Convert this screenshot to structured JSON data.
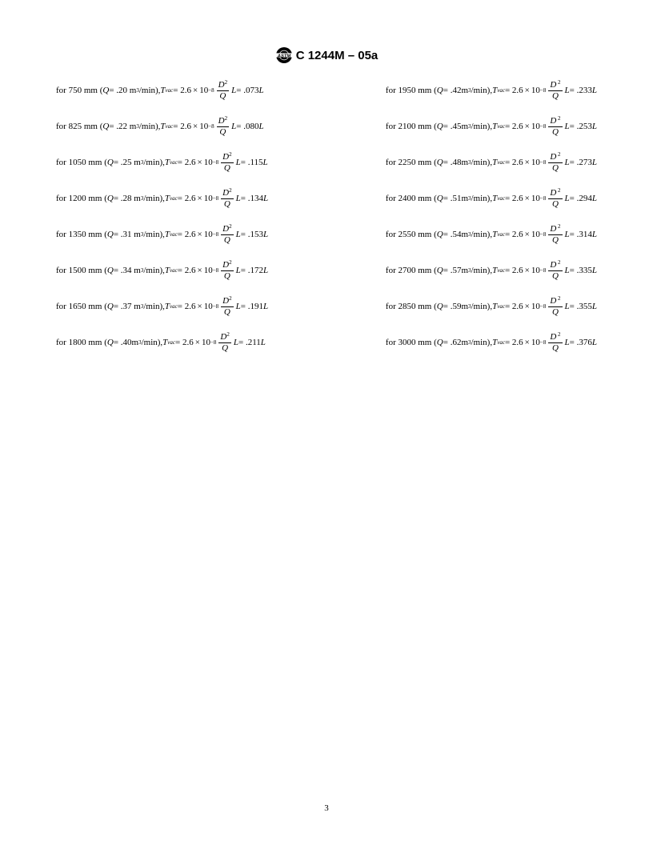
{
  "header": {
    "designation": "C 1244M – 05a"
  },
  "footer": {
    "page_number": "3"
  },
  "formula": {
    "constant": "2.6",
    "exponent_base": "10",
    "exponent_left": "−8",
    "exponent_right": " −8",
    "frac_num_var": "D",
    "frac_num_exp_left": "2",
    "frac_num_exp_right": " 2",
    "frac_den_var": "Q",
    "trailing_var": "L",
    "tvac_var": "T",
    "tvac_sub": "vac",
    "q_var": "Q",
    "units": "m",
    "units_exp": "3",
    "units_tail": "/min"
  },
  "left_col": [
    {
      "size": "750",
      "q": ".20 ",
      "coef": ".073"
    },
    {
      "size": "825",
      "q": ".22 ",
      "coef": ".080"
    },
    {
      "size": "1050",
      "q": ".25 ",
      "coef": ".115"
    },
    {
      "size": "1200",
      "q": ".28 ",
      "coef": ".134"
    },
    {
      "size": "1350",
      "q": ".31 ",
      "coef": ".153"
    },
    {
      "size": "1500",
      "q": ".34 ",
      "coef": ".172"
    },
    {
      "size": "1650",
      "q": ".37 ",
      "coef": ".191"
    },
    {
      "size": "1800",
      "q": ".40",
      "coef": ".211"
    }
  ],
  "right_col": [
    {
      "size": "1950",
      "q": ".42",
      "coef": ".233"
    },
    {
      "size": "2100",
      "q": ".45",
      "coef": ".253"
    },
    {
      "size": "2250",
      "q": ".48",
      "coef": ".273"
    },
    {
      "size": "2400",
      "q": ".51",
      "coef": ".294"
    },
    {
      "size": "2550",
      "q": ".54",
      "coef": ".314"
    },
    {
      "size": "2700",
      "q": ".57",
      "coef": ".335"
    },
    {
      "size": "2850",
      "q": ".59",
      "coef": ".355"
    },
    {
      "size": "3000",
      "q": ".62",
      "coef": ".376"
    }
  ]
}
